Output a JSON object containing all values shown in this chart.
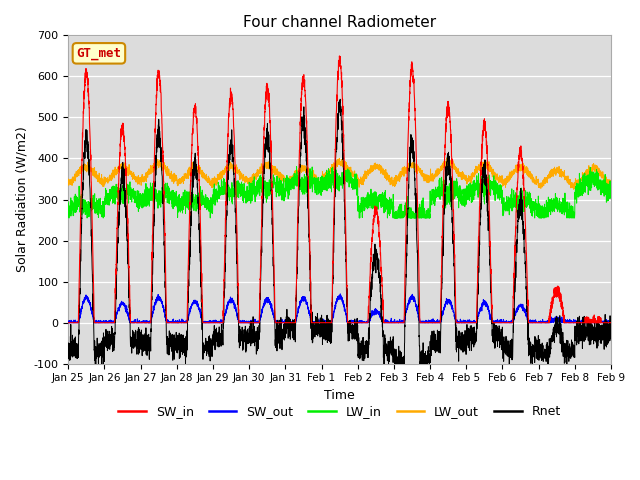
{
  "title": "Four channel Radiometer",
  "xlabel": "Time",
  "ylabel": "Solar Radiation (W/m2)",
  "ylim": [
    -100,
    700
  ],
  "yticks": [
    -100,
    0,
    100,
    200,
    300,
    400,
    500,
    600,
    700
  ],
  "x_tick_labels": [
    "Jan 25",
    "Jan 26",
    "Jan 27",
    "Jan 28",
    "Jan 29",
    "Jan 30",
    "Jan 31",
    "Feb 1",
    "Feb 2",
    "Feb 3",
    "Feb 4",
    "Feb 5",
    "Feb 6",
    "Feb 7",
    "Feb 8",
    "Feb 9"
  ],
  "station_label": "GT_met",
  "colors": {
    "SW_in": "#ff0000",
    "SW_out": "#0000ff",
    "LW_in": "#00ee00",
    "LW_out": "#ffaa00",
    "Rnet": "#000000"
  },
  "background_color": "#dcdcdc",
  "n_days": 15,
  "pts_per_day": 288,
  "seed": 42
}
